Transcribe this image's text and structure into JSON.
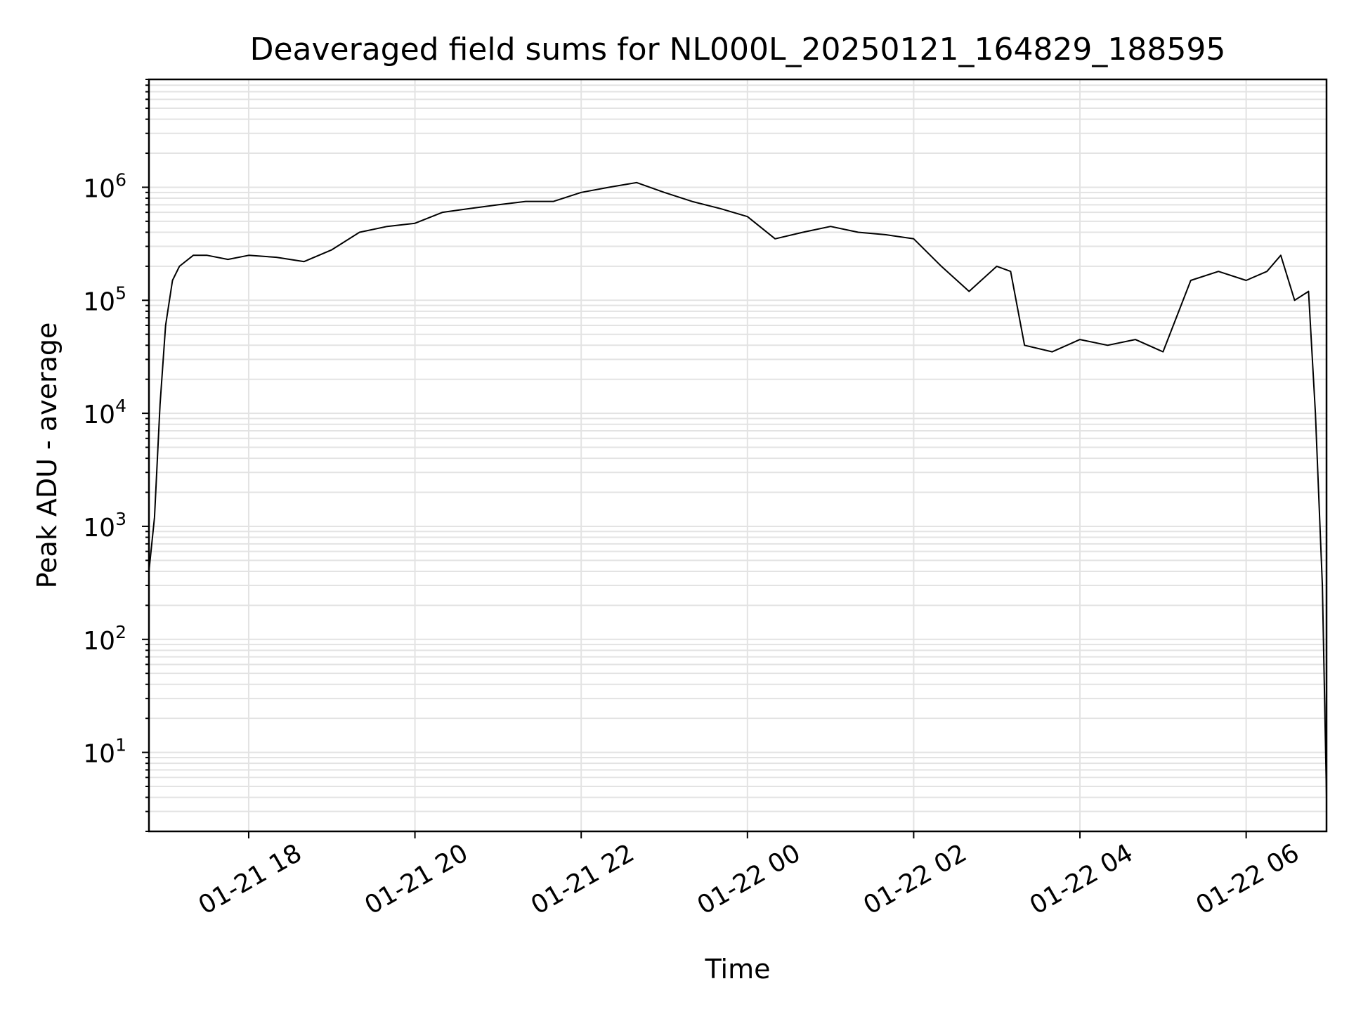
{
  "chart_data": {
    "type": "line",
    "title": "Deaveraged field sums for NL000L_20250121_164829_188595",
    "xlabel": "Time",
    "ylabel": "Peak ADU - average",
    "yscale": "log",
    "ylim": [
      2,
      9000000
    ],
    "xlim": [
      "2025-01-21 16:48",
      "2025-01-22 06:58"
    ],
    "grid": "both (major and minor)",
    "line_color": "#000000",
    "x_ticks": [
      {
        "label": "01-21 18",
        "time": "2025-01-21 18:00"
      },
      {
        "label": "01-21 20",
        "time": "2025-01-21 20:00"
      },
      {
        "label": "01-21 22",
        "time": "2025-01-21 22:00"
      },
      {
        "label": "01-22 00",
        "time": "2025-01-22 00:00"
      },
      {
        "label": "01-22 02",
        "time": "2025-01-22 02:00"
      },
      {
        "label": "01-22 04",
        "time": "2025-01-22 04:00"
      },
      {
        "label": "01-22 06",
        "time": "2025-01-22 06:00"
      }
    ],
    "y_ticks": [
      {
        "base": "10",
        "exp": "1",
        "value": 10
      },
      {
        "base": "10",
        "exp": "2",
        "value": 100
      },
      {
        "base": "10",
        "exp": "3",
        "value": 1000
      },
      {
        "base": "10",
        "exp": "4",
        "value": 10000
      },
      {
        "base": "10",
        "exp": "5",
        "value": 100000
      },
      {
        "base": "10",
        "exp": "6",
        "value": 1000000
      }
    ],
    "series": [
      {
        "name": "",
        "x": [
          "2025-01-21 16:48",
          "2025-01-21 16:52",
          "2025-01-21 16:56",
          "2025-01-21 17:00",
          "2025-01-21 17:05",
          "2025-01-21 17:10",
          "2025-01-21 17:20",
          "2025-01-21 17:30",
          "2025-01-21 17:45",
          "2025-01-21 18:00",
          "2025-01-21 18:20",
          "2025-01-21 18:40",
          "2025-01-21 19:00",
          "2025-01-21 19:20",
          "2025-01-21 19:40",
          "2025-01-21 20:00",
          "2025-01-21 20:20",
          "2025-01-21 20:40",
          "2025-01-21 21:00",
          "2025-01-21 21:20",
          "2025-01-21 21:40",
          "2025-01-21 22:00",
          "2025-01-21 22:20",
          "2025-01-21 22:40",
          "2025-01-21 23:00",
          "2025-01-21 23:20",
          "2025-01-21 23:40",
          "2025-01-22 00:00",
          "2025-01-22 00:20",
          "2025-01-22 00:40",
          "2025-01-22 01:00",
          "2025-01-22 01:20",
          "2025-01-22 01:40",
          "2025-01-22 02:00",
          "2025-01-22 02:20",
          "2025-01-22 02:40",
          "2025-01-22 03:00",
          "2025-01-22 03:10",
          "2025-01-22 03:20",
          "2025-01-22 03:40",
          "2025-01-22 04:00",
          "2025-01-22 04:20",
          "2025-01-22 04:40",
          "2025-01-22 05:00",
          "2025-01-22 05:20",
          "2025-01-22 05:40",
          "2025-01-22 06:00",
          "2025-01-22 06:15",
          "2025-01-22 06:25",
          "2025-01-22 06:35",
          "2025-01-22 06:45",
          "2025-01-22 06:50",
          "2025-01-22 06:55",
          "2025-01-22 06:58"
        ],
        "y": [
          400,
          1200,
          12000,
          60000,
          150000,
          200000,
          250000,
          250000,
          230000,
          250000,
          240000,
          220000,
          280000,
          400000,
          450000,
          480000,
          600000,
          650000,
          700000,
          750000,
          750000,
          900000,
          1000000,
          1100000,
          900000,
          750000,
          650000,
          550000,
          350000,
          400000,
          450000,
          400000,
          380000,
          350000,
          200000,
          120000,
          200000,
          180000,
          40000,
          35000,
          45000,
          40000,
          45000,
          35000,
          150000,
          180000,
          150000,
          180000,
          250000,
          100000,
          120000,
          10000,
          300,
          4
        ]
      }
    ]
  }
}
